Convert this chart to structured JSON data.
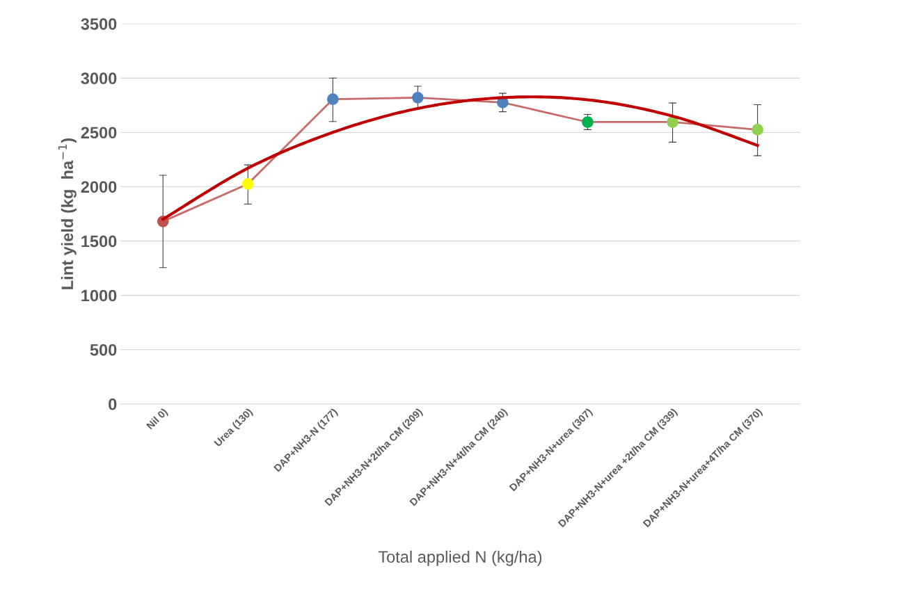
{
  "chart_data": {
    "type": "line",
    "xlabel": "Total applied N (kg/ha)",
    "ylabel": "Lint yield (kg  ha$^{−1}$)",
    "categories": [
      "Nil 0)",
      "Urea (130)",
      "DAP+NH3-N (177)",
      "DAP+NH3-N+2t/ha CM (209)",
      "DAP+NH3-N+4t/ha CM (240)",
      "DAP+NH3-N+urea (307)",
      "DAP+NH3-N+urea +2t/ha CM (339)",
      "DAP+NH3-N+urea+4T/ha CM (370)"
    ],
    "series": [
      {
        "color": "#c0504d",
        "colors": [
          "#c0504d",
          "#ffff00",
          "#4f81bd",
          "#4f81bd",
          "#4f81bd",
          "#00b050",
          "#92d050",
          "#92d050"
        ],
        "marker": "circle",
        "values": [
          1680,
          2025,
          2805,
          2820,
          2775,
          2595,
          2595,
          2525
        ],
        "errors": [
          [
            1255,
            2105
          ],
          [
            1840,
            2200
          ],
          [
            2600,
            3000
          ],
          [
            2725,
            2925
          ],
          [
            2690,
            2860
          ],
          [
            2525,
            2665
          ],
          [
            2410,
            2770
          ],
          [
            2285,
            2755
          ]
        ]
      },
      {
        "color": "#c00000",
        "marker": "none",
        "values": [
          1700,
          2170,
          2500,
          2720,
          2820,
          2800,
          2650,
          2380
        ]
      }
    ],
    "ylim": [
      0,
      3500
    ],
    "yticks": [
      0,
      500,
      1000,
      1500,
      2000,
      2500,
      3000,
      3500
    ],
    "grid": "y",
    "legend": false
  }
}
